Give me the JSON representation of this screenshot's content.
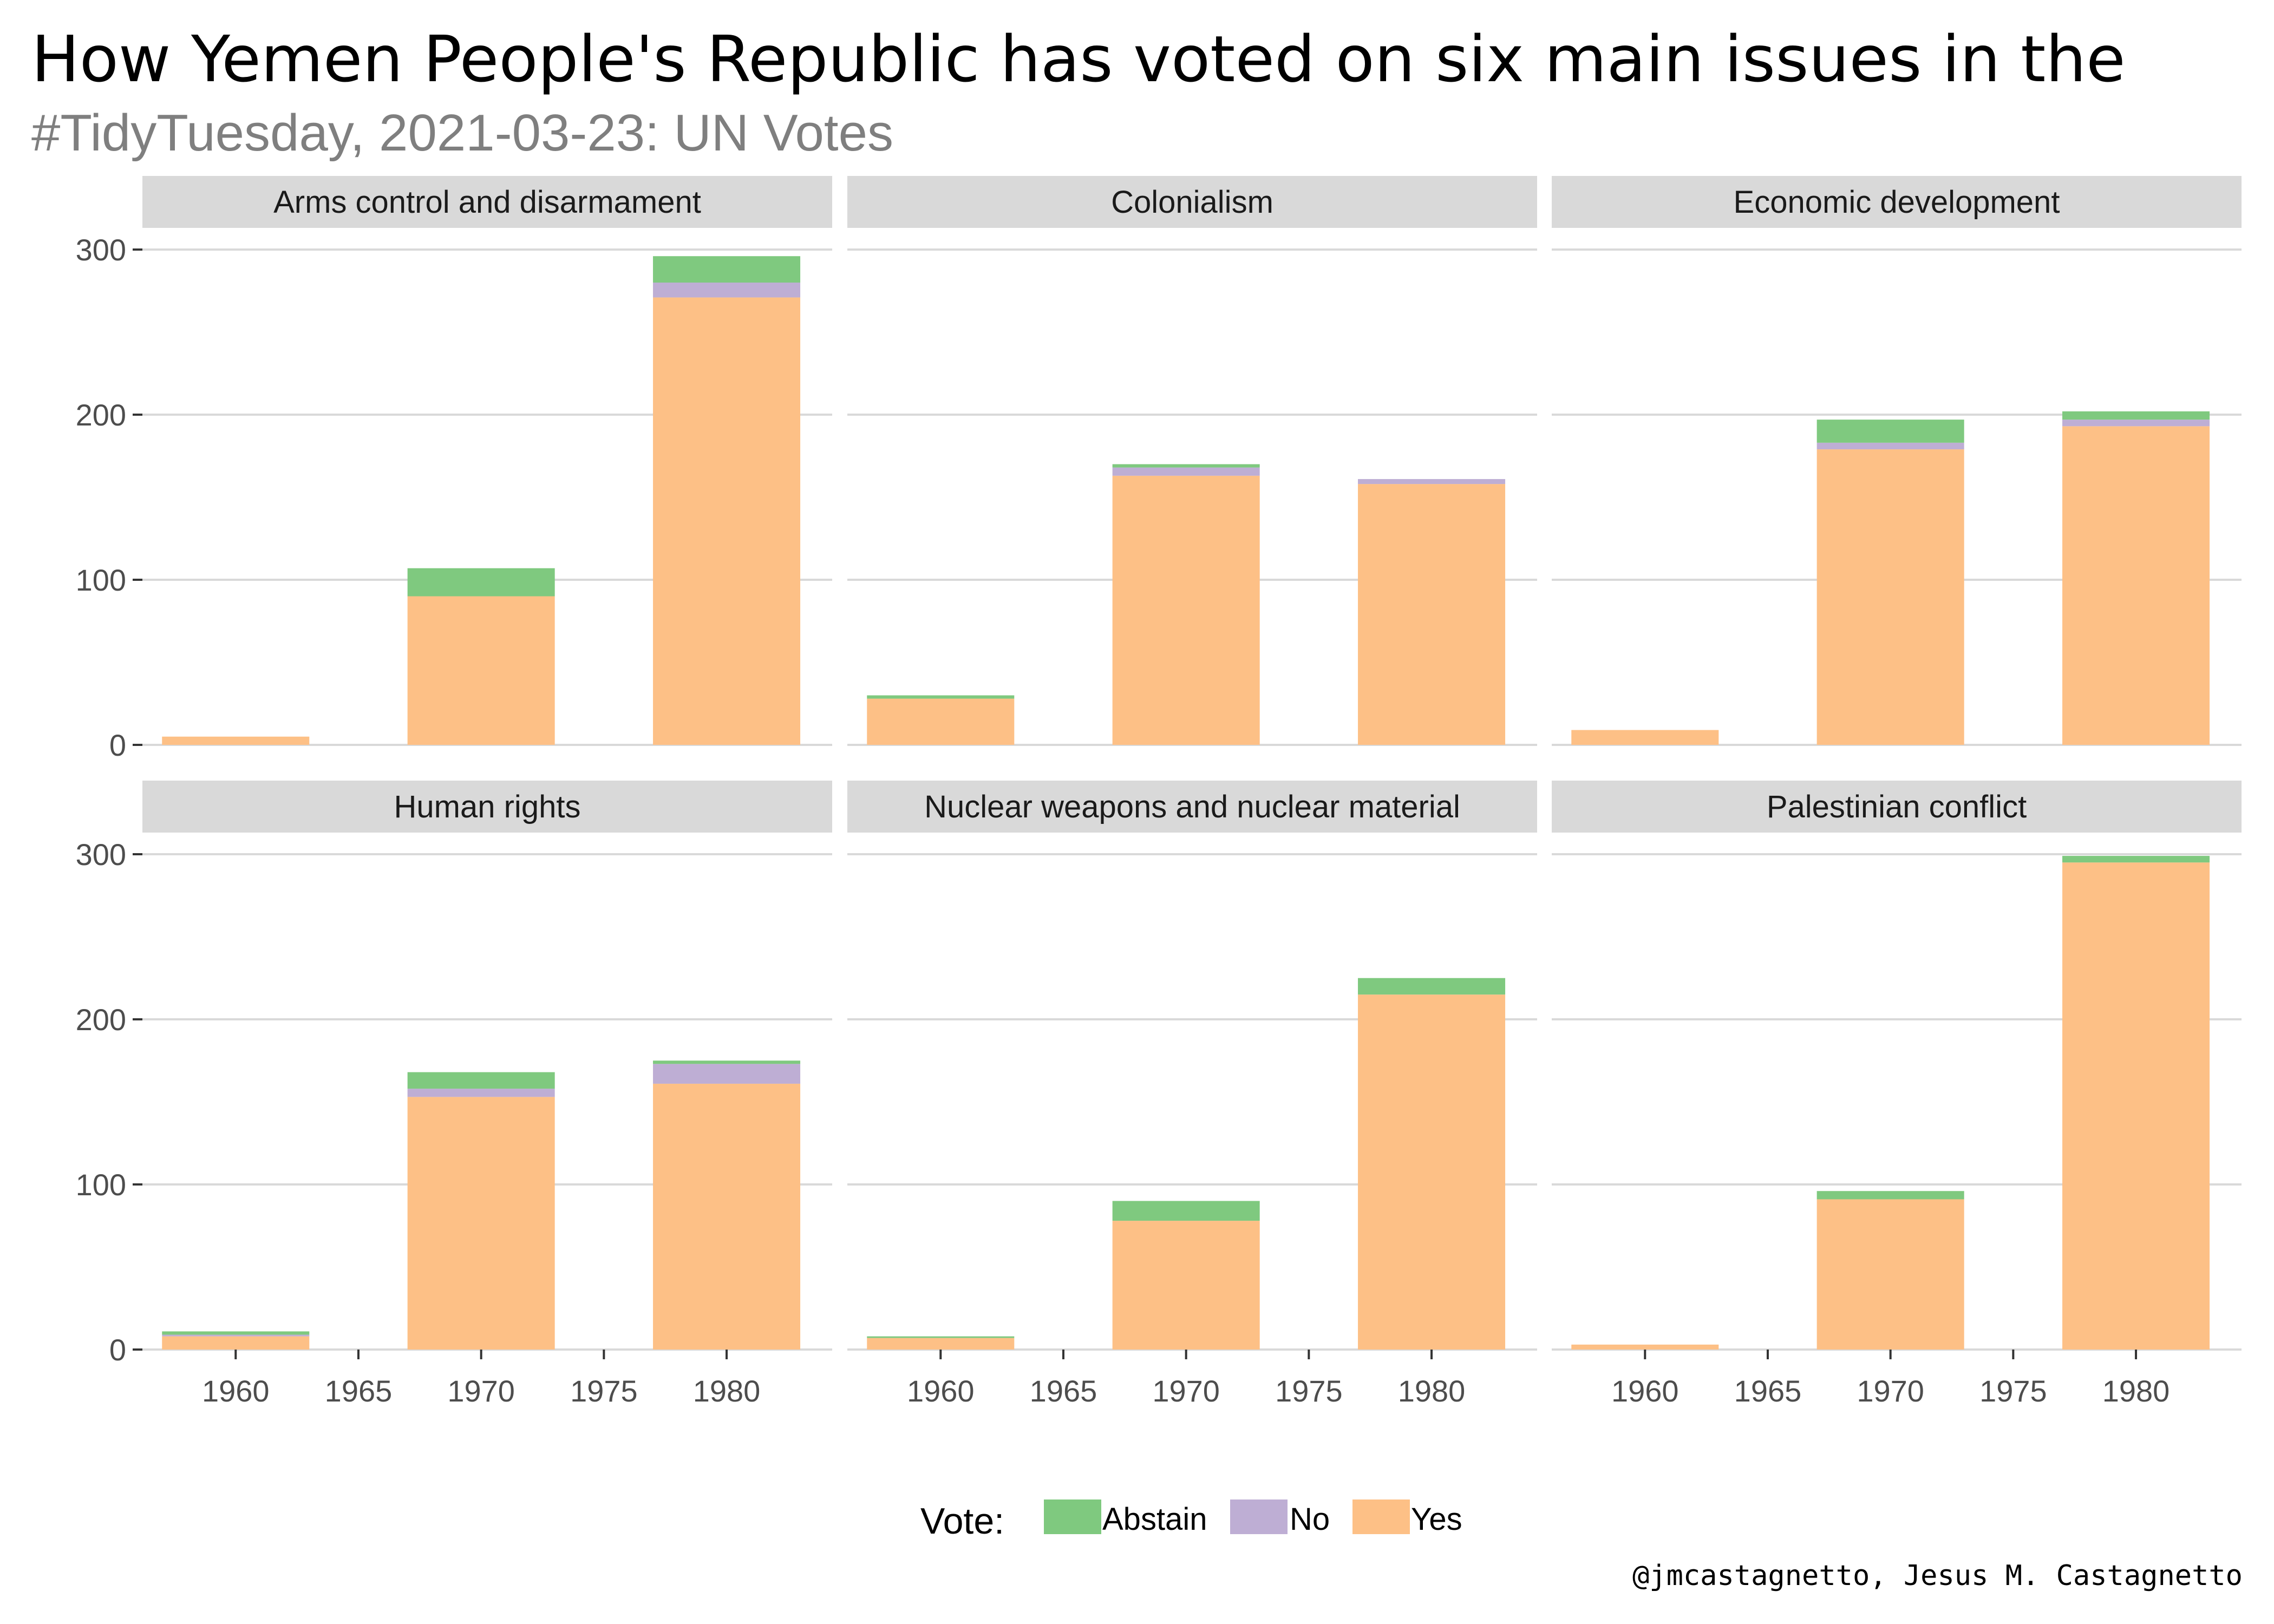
{
  "title": "How Yemen People's Republic has voted on six main issues in the",
  "subtitle": "#TidyTuesday, 2021-03-23: UN Votes",
  "caption": "@jmcastagnetto, Jesus M. Castagnetto",
  "legend": {
    "title": "Vote:",
    "items": [
      {
        "label": "Abstain",
        "color": "#7fc97f"
      },
      {
        "label": "No",
        "color": "#beaed4"
      },
      {
        "label": "Yes",
        "color": "#fdc086"
      }
    ]
  },
  "chart_data": {
    "type": "bar",
    "stacked": true,
    "faceted": true,
    "x_ticks": [
      1960,
      1965,
      1970,
      1975,
      1980
    ],
    "y_ticks": [
      0,
      100,
      200,
      300
    ],
    "ylim": [
      0,
      300
    ],
    "series_order_bottom_to_top": [
      "Yes",
      "No",
      "Abstain"
    ],
    "colors": {
      "Abstain": "#7fc97f",
      "No": "#beaed4",
      "Yes": "#fdc086"
    },
    "grid": true,
    "legend_position": "bottom",
    "panels": [
      {
        "name": "Arms control and disarmament",
        "bars": [
          {
            "x": 1960,
            "Yes": 5,
            "No": 0,
            "Abstain": 0
          },
          {
            "x": 1970,
            "Yes": 90,
            "No": 0,
            "Abstain": 17
          },
          {
            "x": 1980,
            "Yes": 271,
            "No": 9,
            "Abstain": 16
          }
        ]
      },
      {
        "name": "Colonialism",
        "bars": [
          {
            "x": 1960,
            "Yes": 28,
            "No": 0,
            "Abstain": 2
          },
          {
            "x": 1970,
            "Yes": 163,
            "No": 5,
            "Abstain": 2
          },
          {
            "x": 1980,
            "Yes": 158,
            "No": 3,
            "Abstain": 0
          }
        ]
      },
      {
        "name": "Economic development",
        "bars": [
          {
            "x": 1960,
            "Yes": 9,
            "No": 0,
            "Abstain": 0
          },
          {
            "x": 1970,
            "Yes": 179,
            "No": 4,
            "Abstain": 14
          },
          {
            "x": 1980,
            "Yes": 193,
            "No": 4,
            "Abstain": 5
          }
        ]
      },
      {
        "name": "Human rights",
        "bars": [
          {
            "x": 1960,
            "Yes": 8,
            "No": 1,
            "Abstain": 2
          },
          {
            "x": 1970,
            "Yes": 153,
            "No": 5,
            "Abstain": 10
          },
          {
            "x": 1980,
            "Yes": 161,
            "No": 12,
            "Abstain": 2
          }
        ]
      },
      {
        "name": "Nuclear weapons and nuclear material",
        "bars": [
          {
            "x": 1960,
            "Yes": 7,
            "No": 0,
            "Abstain": 1
          },
          {
            "x": 1970,
            "Yes": 78,
            "No": 0,
            "Abstain": 12
          },
          {
            "x": 1980,
            "Yes": 215,
            "No": 0,
            "Abstain": 10
          }
        ]
      },
      {
        "name": "Palestinian conflict",
        "bars": [
          {
            "x": 1960,
            "Yes": 3,
            "No": 0,
            "Abstain": 0
          },
          {
            "x": 1970,
            "Yes": 91,
            "No": 0,
            "Abstain": 5
          },
          {
            "x": 1980,
            "Yes": 295,
            "No": 0,
            "Abstain": 4
          }
        ]
      }
    ]
  }
}
